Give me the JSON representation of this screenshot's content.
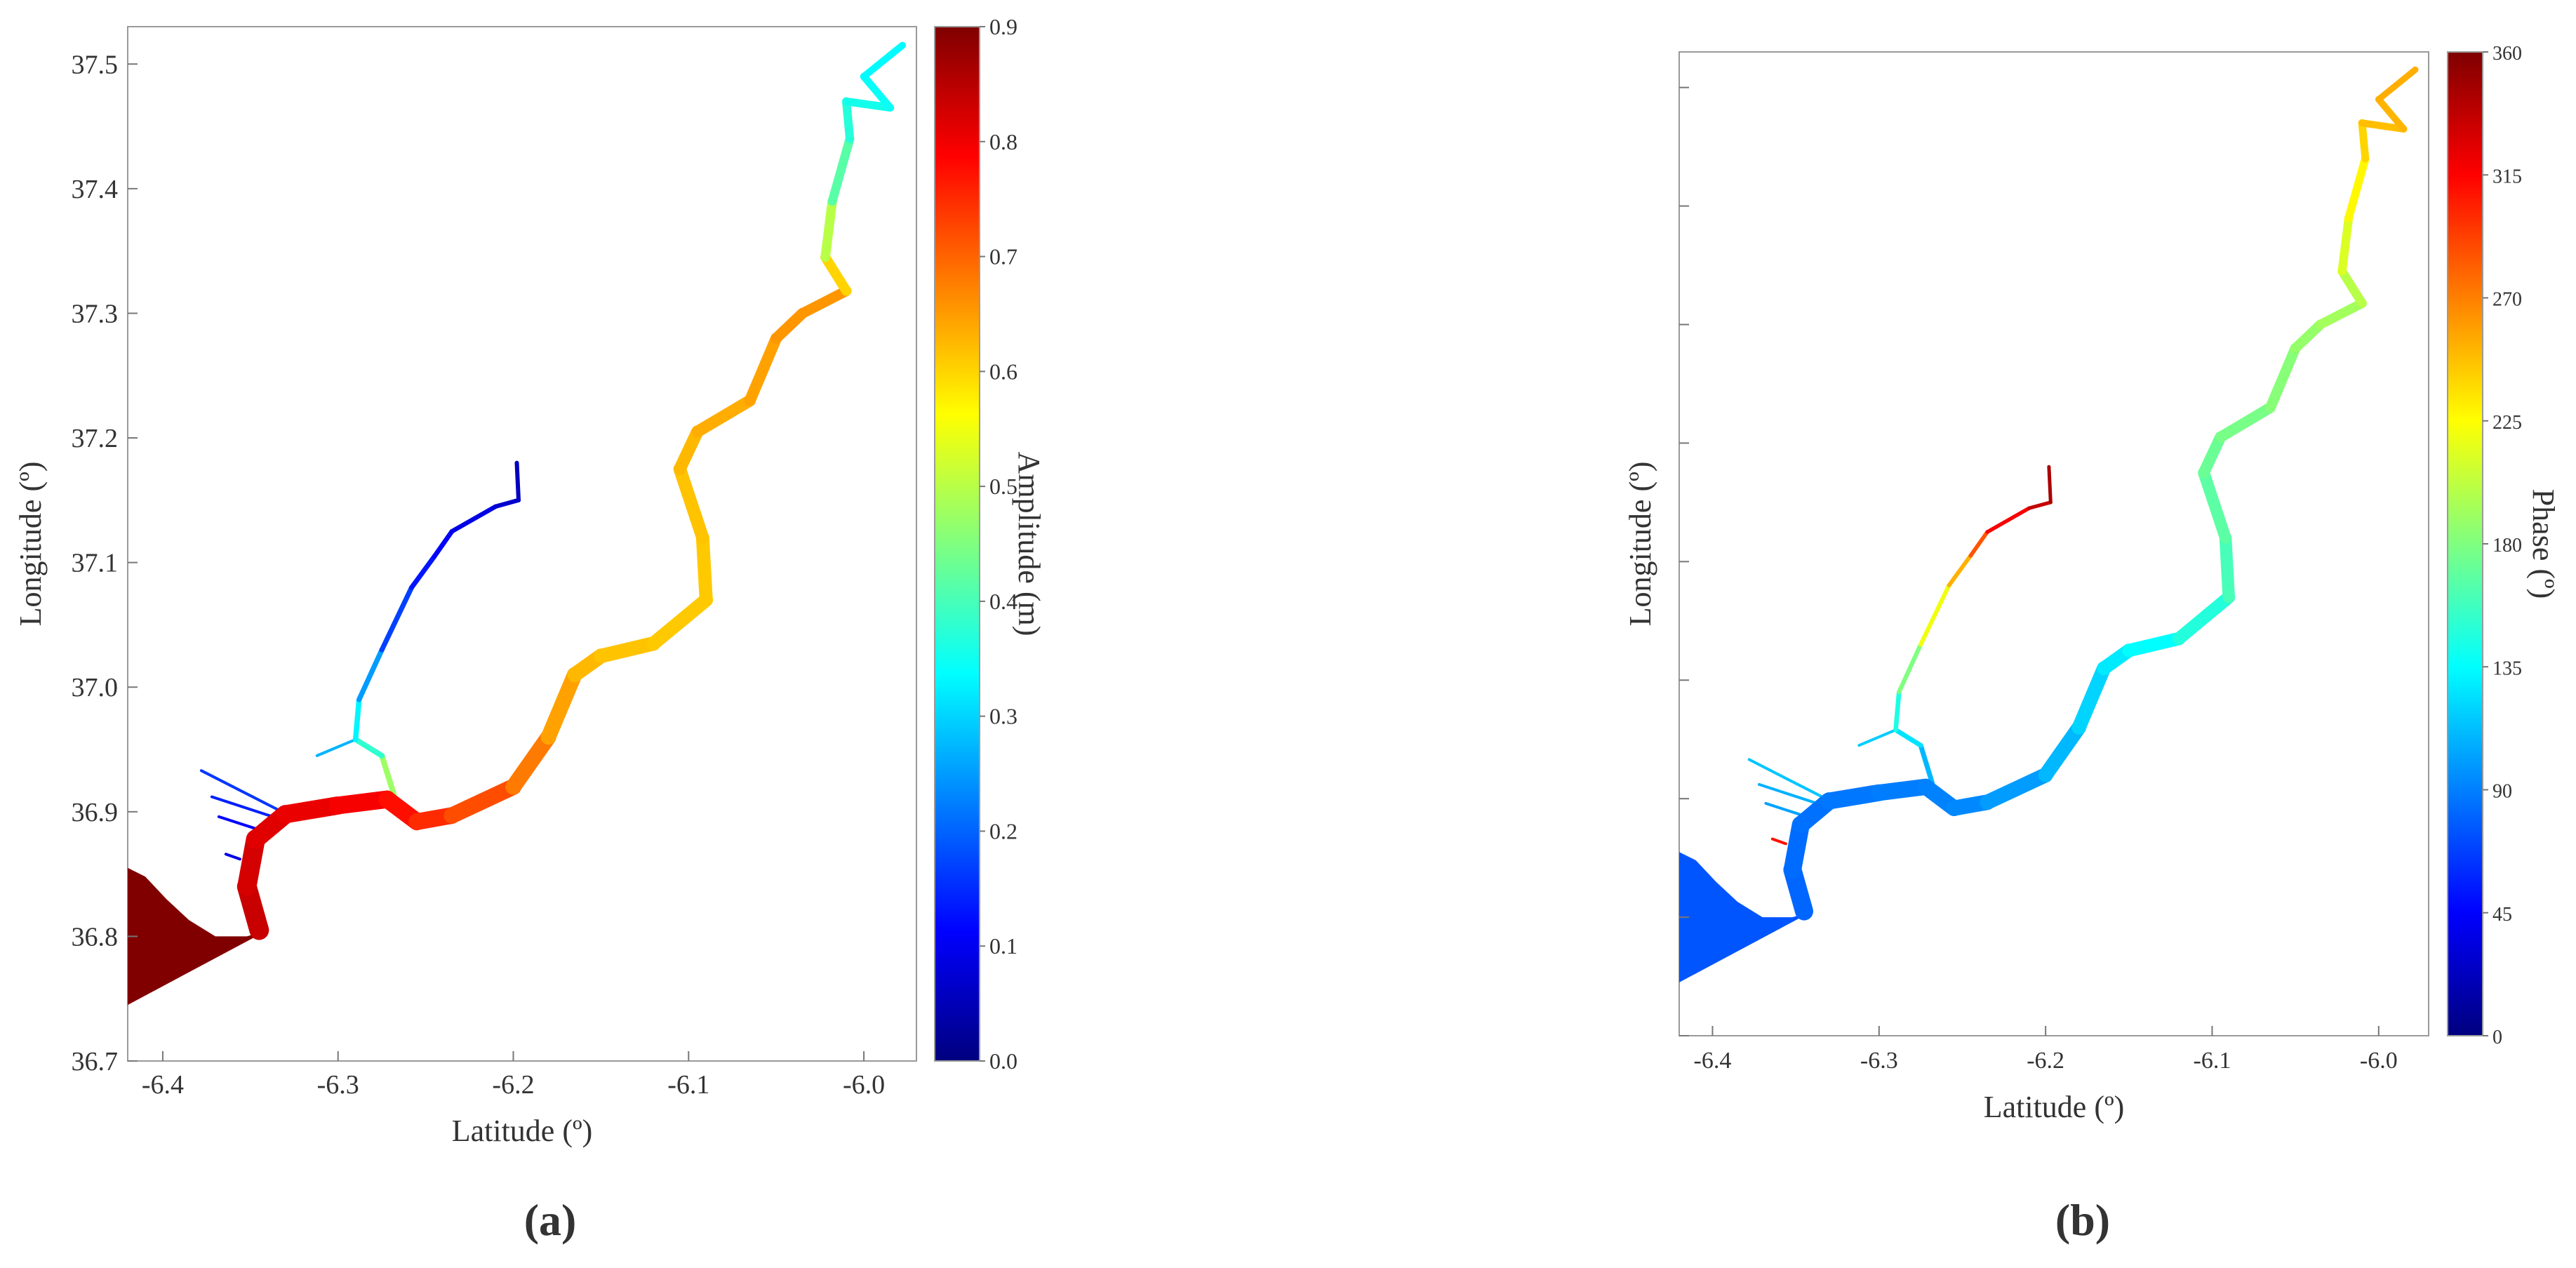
{
  "chart_data": [
    {
      "type": "map",
      "panel_label": "(a)",
      "xlabel": "Latitude (º)",
      "ylabel": "Longitude (º)",
      "xlim": [
        -6.42,
        -5.97
      ],
      "ylim": [
        36.7,
        37.53
      ],
      "xticks": [
        -6.4,
        -6.3,
        -6.2,
        -6.1,
        -6.0
      ],
      "xtick_labels": [
        "-6.4",
        "-6.3",
        "-6.2",
        "-6.1",
        "-6.0"
      ],
      "yticks": [
        36.7,
        36.8,
        36.9,
        37.0,
        37.1,
        37.2,
        37.3,
        37.4,
        37.5
      ],
      "ytick_labels": [
        "36.7",
        "36.8",
        "36.9",
        "37.0",
        "37.1",
        "37.2",
        "37.3",
        "37.4",
        "37.5"
      ],
      "colorbar": {
        "label": "Amplitude (m)",
        "colormap": "jet",
        "range": [
          0.0,
          0.9
        ],
        "ticks": [
          0.0,
          0.1,
          0.2,
          0.3,
          0.4,
          0.5,
          0.6,
          0.7,
          0.8,
          0.9
        ],
        "tick_labels": [
          "0.0",
          "0.1",
          "0.2",
          "0.3",
          "0.4",
          "0.5",
          "0.6",
          "0.7",
          "0.8",
          "0.9"
        ]
      },
      "mouth_value": 0.9,
      "main_channel": [
        {
          "x": -6.345,
          "y": 36.805,
          "v": 0.84
        },
        {
          "x": -6.352,
          "y": 36.84,
          "v": 0.83
        },
        {
          "x": -6.347,
          "y": 36.878,
          "v": 0.82
        },
        {
          "x": -6.33,
          "y": 36.898,
          "v": 0.81
        },
        {
          "x": -6.3,
          "y": 36.905,
          "v": 0.8
        },
        {
          "x": -6.272,
          "y": 36.91,
          "v": 0.79
        },
        {
          "x": -6.255,
          "y": 36.892,
          "v": 0.76
        },
        {
          "x": -6.235,
          "y": 36.897,
          "v": 0.74
        },
        {
          "x": -6.2,
          "y": 36.92,
          "v": 0.7
        },
        {
          "x": -6.18,
          "y": 36.96,
          "v": 0.66
        },
        {
          "x": -6.165,
          "y": 37.01,
          "v": 0.63
        },
        {
          "x": -6.15,
          "y": 37.025,
          "v": 0.62
        },
        {
          "x": -6.12,
          "y": 37.035,
          "v": 0.61
        },
        {
          "x": -6.09,
          "y": 37.07,
          "v": 0.61
        },
        {
          "x": -6.092,
          "y": 37.12,
          "v": 0.61
        },
        {
          "x": -6.105,
          "y": 37.175,
          "v": 0.62
        },
        {
          "x": -6.095,
          "y": 37.205,
          "v": 0.63
        },
        {
          "x": -6.065,
          "y": 37.23,
          "v": 0.64
        },
        {
          "x": -6.05,
          "y": 37.28,
          "v": 0.65
        },
        {
          "x": -6.035,
          "y": 37.3,
          "v": 0.66
        },
        {
          "x": -6.01,
          "y": 37.318,
          "v": 0.65
        },
        {
          "x": -6.022,
          "y": 37.345,
          "v": 0.55
        },
        {
          "x": -6.018,
          "y": 37.39,
          "v": 0.45
        },
        {
          "x": -6.008,
          "y": 37.44,
          "v": 0.38
        },
        {
          "x": -6.01,
          "y": 37.47,
          "v": 0.36
        },
        {
          "x": -5.985,
          "y": 37.465,
          "v": 0.35
        },
        {
          "x": -6.0,
          "y": 37.49,
          "v": 0.34
        },
        {
          "x": -5.978,
          "y": 37.515,
          "v": 0.33
        }
      ],
      "tributary": [
        {
          "x": -6.268,
          "y": 36.913,
          "v": 0.55
        },
        {
          "x": -6.275,
          "y": 36.945,
          "v": 0.4
        },
        {
          "x": -6.29,
          "y": 36.958,
          "v": 0.36
        },
        {
          "x": -6.288,
          "y": 36.99,
          "v": 0.3
        },
        {
          "x": -6.275,
          "y": 37.03,
          "v": 0.2
        },
        {
          "x": -6.258,
          "y": 37.08,
          "v": 0.14
        },
        {
          "x": -6.245,
          "y": 37.105,
          "v": 0.12
        },
        {
          "x": -6.235,
          "y": 37.125,
          "v": 0.1
        },
        {
          "x": -6.21,
          "y": 37.145,
          "v": 0.08
        },
        {
          "x": -6.197,
          "y": 37.15,
          "v": 0.06
        },
        {
          "x": -6.198,
          "y": 37.18,
          "v": 0.05
        }
      ],
      "side_channels": [
        [
          {
            "x": -6.29,
            "y": 36.958,
            "v": 0.3
          },
          {
            "x": -6.312,
            "y": 36.945,
            "v": 0.24
          }
        ],
        [
          {
            "x": -6.332,
            "y": 36.9,
            "v": 0.2
          },
          {
            "x": -6.378,
            "y": 36.933,
            "v": 0.12
          }
        ],
        [
          {
            "x": -6.335,
            "y": 36.895,
            "v": 0.18
          },
          {
            "x": -6.372,
            "y": 36.912,
            "v": 0.1
          }
        ],
        [
          {
            "x": -6.346,
            "y": 36.886,
            "v": 0.15
          },
          {
            "x": -6.368,
            "y": 36.896,
            "v": 0.08
          }
        ],
        [
          {
            "x": -6.356,
            "y": 36.862,
            "v": 0.12
          },
          {
            "x": -6.364,
            "y": 36.866,
            "v": 0.06
          }
        ]
      ]
    },
    {
      "type": "map",
      "panel_label": "(b)",
      "xlabel": "Latitude (º)",
      "ylabel": "Longitude (º)",
      "xlim": [
        -6.42,
        -5.97
      ],
      "ylim": [
        36.7,
        37.53
      ],
      "xticks": [
        -6.4,
        -6.3,
        -6.2,
        -6.1,
        -6.0
      ],
      "xtick_labels": [
        "-6.4",
        "-6.3",
        "-6.2",
        "-6.1",
        "-6.0"
      ],
      "yticks": [
        36.7,
        36.8,
        36.9,
        37.0,
        37.1,
        37.2,
        37.3,
        37.4,
        37.5
      ],
      "ytick_labels": [],
      "colorbar": {
        "label": "Phase (º)",
        "colormap": "jet",
        "range": [
          0,
          360
        ],
        "ticks": [
          0,
          45,
          90,
          135,
          180,
          225,
          270,
          315,
          360
        ],
        "tick_labels": [
          "0",
          "45",
          "90",
          "135",
          "180",
          "225",
          "270",
          "315",
          "360"
        ]
      },
      "mouth_value": 75,
      "main_channel": [
        {
          "x": -6.345,
          "y": 36.805,
          "v": 80
        },
        {
          "x": -6.352,
          "y": 36.84,
          "v": 82
        },
        {
          "x": -6.347,
          "y": 36.878,
          "v": 84
        },
        {
          "x": -6.33,
          "y": 36.898,
          "v": 86
        },
        {
          "x": -6.3,
          "y": 36.905,
          "v": 88
        },
        {
          "x": -6.272,
          "y": 36.91,
          "v": 90
        },
        {
          "x": -6.255,
          "y": 36.892,
          "v": 92
        },
        {
          "x": -6.235,
          "y": 36.897,
          "v": 95
        },
        {
          "x": -6.2,
          "y": 36.92,
          "v": 105
        },
        {
          "x": -6.18,
          "y": 36.96,
          "v": 115
        },
        {
          "x": -6.165,
          "y": 37.01,
          "v": 125
        },
        {
          "x": -6.15,
          "y": 37.025,
          "v": 130
        },
        {
          "x": -6.12,
          "y": 37.035,
          "v": 140
        },
        {
          "x": -6.09,
          "y": 37.07,
          "v": 155
        },
        {
          "x": -6.092,
          "y": 37.12,
          "v": 165
        },
        {
          "x": -6.105,
          "y": 37.175,
          "v": 170
        },
        {
          "x": -6.095,
          "y": 37.205,
          "v": 175
        },
        {
          "x": -6.065,
          "y": 37.23,
          "v": 180
        },
        {
          "x": -6.05,
          "y": 37.28,
          "v": 185
        },
        {
          "x": -6.035,
          "y": 37.3,
          "v": 190
        },
        {
          "x": -6.01,
          "y": 37.318,
          "v": 195
        },
        {
          "x": -6.022,
          "y": 37.345,
          "v": 205
        },
        {
          "x": -6.018,
          "y": 37.39,
          "v": 220
        },
        {
          "x": -6.008,
          "y": 37.44,
          "v": 235
        },
        {
          "x": -6.01,
          "y": 37.47,
          "v": 245
        },
        {
          "x": -5.985,
          "y": 37.465,
          "v": 250
        },
        {
          "x": -6.0,
          "y": 37.49,
          "v": 252
        },
        {
          "x": -5.978,
          "y": 37.515,
          "v": 255
        }
      ],
      "tributary": [
        {
          "x": -6.268,
          "y": 36.913,
          "v": 100
        },
        {
          "x": -6.275,
          "y": 36.945,
          "v": 120
        },
        {
          "x": -6.29,
          "y": 36.958,
          "v": 130
        },
        {
          "x": -6.288,
          "y": 36.99,
          "v": 160
        },
        {
          "x": -6.275,
          "y": 37.03,
          "v": 200
        },
        {
          "x": -6.258,
          "y": 37.08,
          "v": 240
        },
        {
          "x": -6.245,
          "y": 37.105,
          "v": 265
        },
        {
          "x": -6.235,
          "y": 37.125,
          "v": 305
        },
        {
          "x": -6.21,
          "y": 37.145,
          "v": 330
        },
        {
          "x": -6.197,
          "y": 37.15,
          "v": 340
        },
        {
          "x": -6.198,
          "y": 37.18,
          "v": 350
        }
      ],
      "side_channels": [
        [
          {
            "x": -6.29,
            "y": 36.958,
            "v": 120
          },
          {
            "x": -6.312,
            "y": 36.945,
            "v": 115
          }
        ],
        [
          {
            "x": -6.332,
            "y": 36.9,
            "v": 110
          },
          {
            "x": -6.378,
            "y": 36.933,
            "v": 120
          }
        ],
        [
          {
            "x": -6.335,
            "y": 36.895,
            "v": 105
          },
          {
            "x": -6.372,
            "y": 36.912,
            "v": 110
          }
        ],
        [
          {
            "x": -6.346,
            "y": 36.886,
            "v": 100
          },
          {
            "x": -6.368,
            "y": 36.896,
            "v": 105
          }
        ],
        [
          {
            "x": -6.356,
            "y": 36.862,
            "v": 300
          },
          {
            "x": -6.364,
            "y": 36.866,
            "v": 320
          }
        ]
      ]
    }
  ]
}
